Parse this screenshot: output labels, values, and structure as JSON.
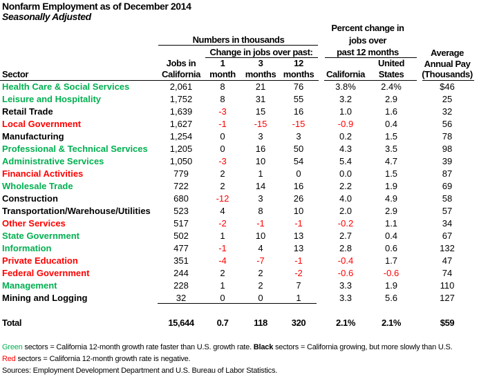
{
  "title": "Nonfarm Employment as of December 2014",
  "subtitle": "Seasonally Adjusted",
  "colors": {
    "green": "#00b050",
    "red": "#ff0000",
    "black": "#000000"
  },
  "headers": {
    "numbers_group": "Numbers in thousands",
    "change_group": "Change in jobs over past:",
    "percent_group": [
      "Percent change in",
      "jobs over",
      "past 12 months"
    ],
    "sector": "Sector",
    "jobs": [
      "Jobs in",
      "California"
    ],
    "m1": [
      "1",
      "month"
    ],
    "m3": [
      "3",
      "months"
    ],
    "m12": [
      "12",
      "months"
    ],
    "pct_ca": "California",
    "pct_us": [
      "United",
      "States"
    ],
    "pay": [
      "Average",
      "Annual Pay",
      "(Thousands)"
    ]
  },
  "rows": [
    {
      "sector": "Health Care & Social Services",
      "color": "green",
      "jobs": "2,061",
      "m1": "8",
      "m3": "21",
      "m12": "76",
      "pct_ca": "3.8%",
      "pct_us": "2.4%",
      "pay": "$46"
    },
    {
      "sector": "Leisure and Hospitality",
      "color": "green",
      "jobs": "1,752",
      "m1": "8",
      "m3": "31",
      "m12": "55",
      "pct_ca": "3.2",
      "pct_us": "2.9",
      "pay": "25"
    },
    {
      "sector": "Retail Trade",
      "color": "black",
      "jobs": "1,639",
      "m1": "-3",
      "m3": "15",
      "m12": "16",
      "pct_ca": "1.0",
      "pct_us": "1.6",
      "pay": "32"
    },
    {
      "sector": "Local Government",
      "color": "red",
      "jobs": "1,627",
      "m1": "-1",
      "m3": "-15",
      "m12": "-15",
      "pct_ca": "-0.9",
      "pct_us": "0.4",
      "pay": "56"
    },
    {
      "sector": "Manufacturing",
      "color": "black",
      "jobs": "1,254",
      "m1": "0",
      "m3": "3",
      "m12": "3",
      "pct_ca": "0.2",
      "pct_us": "1.5",
      "pay": "78"
    },
    {
      "sector": "Professional & Technical Services",
      "color": "green",
      "jobs": "1,205",
      "m1": "0",
      "m3": "16",
      "m12": "50",
      "pct_ca": "4.3",
      "pct_us": "3.5",
      "pay": "98"
    },
    {
      "sector": "Administrative Services",
      "color": "green",
      "jobs": "1,050",
      "m1": "-3",
      "m3": "10",
      "m12": "54",
      "pct_ca": "5.4",
      "pct_us": "4.7",
      "pay": "39"
    },
    {
      "sector": "Financial Activities",
      "color": "red",
      "jobs": "779",
      "m1": "2",
      "m3": "1",
      "m12": "0",
      "pct_ca": "0.0",
      "pct_us": "1.5",
      "pay": "87"
    },
    {
      "sector": "Wholesale Trade",
      "color": "green",
      "jobs": "722",
      "m1": "2",
      "m3": "14",
      "m12": "16",
      "pct_ca": "2.2",
      "pct_us": "1.9",
      "pay": "69"
    },
    {
      "sector": "Construction",
      "color": "black",
      "jobs": "680",
      "m1": "-12",
      "m3": "3",
      "m12": "26",
      "pct_ca": "4.0",
      "pct_us": "4.9",
      "pay": "58"
    },
    {
      "sector": "Transportation/Warehouse/Utilities",
      "color": "black",
      "jobs": "523",
      "m1": "4",
      "m3": "8",
      "m12": "10",
      "pct_ca": "2.0",
      "pct_us": "2.9",
      "pay": "57"
    },
    {
      "sector": "Other Services",
      "color": "red",
      "jobs": "517",
      "m1": "-2",
      "m3": "-1",
      "m12": "-1",
      "pct_ca": "-0.2",
      "pct_us": "1.1",
      "pay": "34"
    },
    {
      "sector": "State Government",
      "color": "green",
      "jobs": "502",
      "m1": "1",
      "m3": "10",
      "m12": "13",
      "pct_ca": "2.7",
      "pct_us": "0.4",
      "pay": "67"
    },
    {
      "sector": "Information",
      "color": "green",
      "jobs": "477",
      "m1": "-1",
      "m3": "4",
      "m12": "13",
      "pct_ca": "2.8",
      "pct_us": "0.6",
      "pay": "132"
    },
    {
      "sector": "Private Education",
      "color": "red",
      "jobs": "351",
      "m1": "-4",
      "m3": "-7",
      "m12": "-1",
      "pct_ca": "-0.4",
      "pct_us": "1.7",
      "pay": "47"
    },
    {
      "sector": "Federal Government",
      "color": "red",
      "jobs": "244",
      "m1": "2",
      "m3": "2",
      "m12": "-2",
      "pct_ca": "-0.6",
      "pct_us": "-0.6",
      "pay": "74"
    },
    {
      "sector": "Management",
      "color": "green",
      "jobs": "228",
      "m1": "1",
      "m3": "2",
      "m12": "7",
      "pct_ca": "3.3",
      "pct_us": "1.9",
      "pay": "110"
    },
    {
      "sector": "Mining and Logging",
      "color": "black",
      "jobs": "32",
      "m1": "0",
      "m3": "0",
      "m12": "1",
      "pct_ca": "3.3",
      "pct_us": "5.6",
      "pay": "127"
    }
  ],
  "total": {
    "sector": "Total",
    "jobs": "15,644",
    "m1": "0.7",
    "m3": "118",
    "m12": "320",
    "pct_ca": "2.1%",
    "pct_us": "2.1%",
    "pay": "$59"
  },
  "footer": {
    "green_word": "Green",
    "green_text": " sectors = California 12-month growth rate faster than U.S. growth rate. ",
    "black_word": "Black",
    "black_text": " sectors = California growing, but more slowly than U.S.",
    "red_word": "Red",
    "red_text": " sectors = California 12-month growth rate is negative.",
    "sources": "Sources: Employment Development Department and U.S. Bureau of Labor Statistics."
  }
}
